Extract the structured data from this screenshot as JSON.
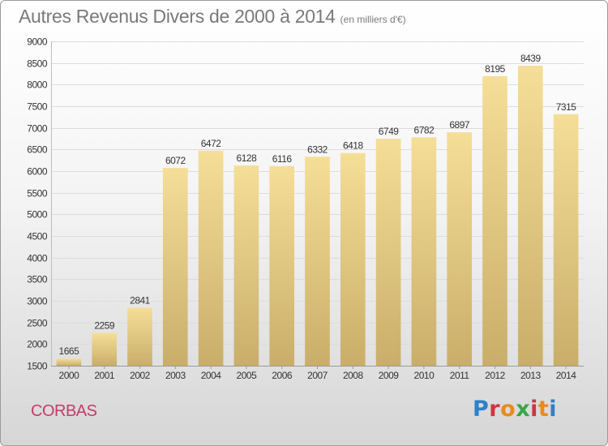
{
  "header": {
    "title": "Autres Revenus Divers de 2000 à 2014",
    "subtitle": "(en milliers d'€)"
  },
  "footer": {
    "commune": "CORBAS",
    "logo_text": "Proxiti"
  },
  "colors": {
    "bar_top": "#f5de98",
    "bar_bottom": "#c9ae6a",
    "grid": "#dcdcdc",
    "title": "#7a7a7a",
    "commune": "#c33b6b"
  },
  "chart_data": {
    "type": "bar",
    "title": "Autres Revenus Divers de 2000 à 2014",
    "subtitle": "(en milliers d'€)",
    "xlabel": "",
    "ylabel": "",
    "categories": [
      "2000",
      "2001",
      "2002",
      "2003",
      "2004",
      "2005",
      "2006",
      "2007",
      "2008",
      "2009",
      "2010",
      "2011",
      "2012",
      "2013",
      "2014"
    ],
    "values": [
      1665,
      2259,
      2841,
      6072,
      6472,
      6128,
      6116,
      6332,
      6418,
      6749,
      6782,
      6897,
      8195,
      8439,
      7315
    ],
    "ylim": [
      1500,
      9000
    ],
    "yticks": [
      1500,
      2000,
      2500,
      3000,
      3500,
      4000,
      4500,
      5000,
      5500,
      6000,
      6500,
      7000,
      7500,
      8000,
      8500,
      9000
    ],
    "grid": true,
    "legend": "none"
  }
}
